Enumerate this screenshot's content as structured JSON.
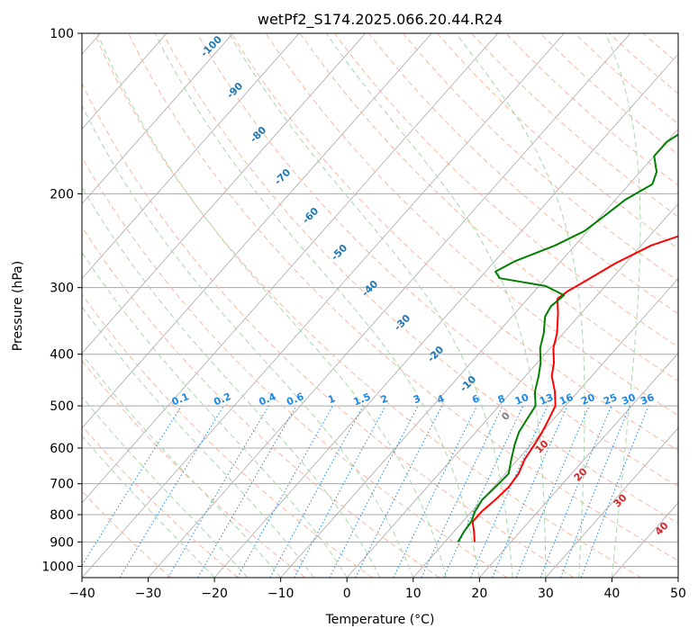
{
  "chart_data": {
    "type": "line",
    "title": "wetPf2_S174.2025.066.20.44.R24",
    "xlabel": "Temperature (°C)",
    "ylabel": "Pressure (hPa)",
    "xlim": [
      -40,
      50
    ],
    "ylim": [
      1050,
      100
    ],
    "y_scale": "log",
    "grid": true,
    "x_ticks": [
      "−40",
      "−30",
      "−20",
      "−10",
      "0",
      "10",
      "20",
      "30",
      "40",
      "50"
    ],
    "x_tick_values": [
      -40,
      -30,
      -20,
      -10,
      0,
      10,
      20,
      30,
      40,
      50
    ],
    "y_ticks": [
      "100",
      "200",
      "300",
      "400",
      "500",
      "600",
      "700",
      "800",
      "900",
      "1000"
    ],
    "y_tick_values": [
      100,
      200,
      300,
      400,
      500,
      600,
      700,
      800,
      900,
      1000
    ],
    "series": [
      {
        "color": "#ff0000",
        "description": "temperature profile",
        "points": [
          [
            14.5,
            900
          ],
          [
            13.0,
            860
          ],
          [
            11.5,
            825
          ],
          [
            11.5,
            790
          ],
          [
            12.0,
            750
          ],
          [
            12.3,
            710
          ],
          [
            12.0,
            670
          ],
          [
            11.0,
            630
          ],
          [
            10.5,
            590
          ],
          [
            10.0,
            560
          ],
          [
            9.3,
            530
          ],
          [
            8.5,
            500
          ],
          [
            6.5,
            470
          ],
          [
            4.0,
            440
          ],
          [
            2.5,
            415
          ],
          [
            0.5,
            390
          ],
          [
            -1.0,
            365
          ],
          [
            -3.5,
            335
          ],
          [
            -5.5,
            315
          ],
          [
            -5.0,
            305
          ],
          [
            -3.5,
            290
          ],
          [
            -1.5,
            270
          ],
          [
            1.5,
            250
          ],
          [
            6.0,
            235
          ],
          [
            9.0,
            220
          ],
          [
            10.5,
            205
          ],
          [
            11.5,
            190
          ],
          [
            12.5,
            175
          ],
          [
            13.5,
            160
          ],
          [
            15.0,
            145
          ],
          [
            17.0,
            130
          ],
          [
            18.5,
            120
          ],
          [
            19.0,
            110
          ],
          [
            19.2,
            105
          ],
          [
            19.8,
            100
          ]
        ]
      },
      {
        "color": "#008000",
        "description": "dewpoint profile",
        "points": [
          [
            12.0,
            900
          ],
          [
            11.5,
            860
          ],
          [
            11.3,
            825
          ],
          [
            10.5,
            790
          ],
          [
            10.0,
            750
          ],
          [
            10.3,
            710
          ],
          [
            10.5,
            670
          ],
          [
            9.0,
            630
          ],
          [
            7.5,
            590
          ],
          [
            6.5,
            560
          ],
          [
            6.0,
            530
          ],
          [
            5.5,
            500
          ],
          [
            3.5,
            470
          ],
          [
            2.0,
            440
          ],
          [
            0.5,
            415
          ],
          [
            -1.5,
            390
          ],
          [
            -3.0,
            365
          ],
          [
            -5.0,
            340
          ],
          [
            -5.5,
            325
          ],
          [
            -5.0,
            310
          ],
          [
            -9.0,
            298
          ],
          [
            -17.0,
            288
          ],
          [
            -18.5,
            280
          ],
          [
            -17.0,
            268
          ],
          [
            -13.0,
            250
          ],
          [
            -10.5,
            235
          ],
          [
            -9.5,
            220
          ],
          [
            -8.5,
            205
          ],
          [
            -6.5,
            192
          ],
          [
            -7.5,
            182
          ],
          [
            -10.0,
            170
          ],
          [
            -10.0,
            160
          ],
          [
            -8.5,
            150
          ],
          [
            -6.5,
            140
          ],
          [
            -5.5,
            130
          ],
          [
            -4.5,
            122
          ],
          [
            -3.0,
            114
          ],
          [
            -0.5,
            107
          ],
          [
            1.5,
            103
          ],
          [
            3.3,
            100
          ]
        ]
      }
    ],
    "dry_adiabat_labels": [
      "-100",
      "-90",
      "-80",
      "-70",
      "-60",
      "-50",
      "-40",
      "-30",
      "-20",
      "-10",
      "0",
      "10",
      "20",
      "30",
      "40"
    ],
    "mixing_ratio_labels": [
      "0.1",
      "0.2",
      "0.4",
      "0.6",
      "1",
      "1.5",
      "2",
      "3",
      "4",
      "6",
      "8",
      "10",
      "13",
      "16",
      "20",
      "25",
      "30",
      "36"
    ]
  },
  "colors": {
    "temperature": "#ff0000",
    "dewpoint": "#008000",
    "dry_adiabat": "#f8b8a0",
    "moist_adiabat": "#a8d8a8",
    "mixing_ratio": "#1e88e5",
    "isotherm": "#a8a8a8",
    "isobar": "#a8a8a8",
    "adiabat_label_cold": "#1f77b4",
    "adiabat_label_zero": "#7f7f7f",
    "adiabat_label_warm": "#d62728"
  }
}
